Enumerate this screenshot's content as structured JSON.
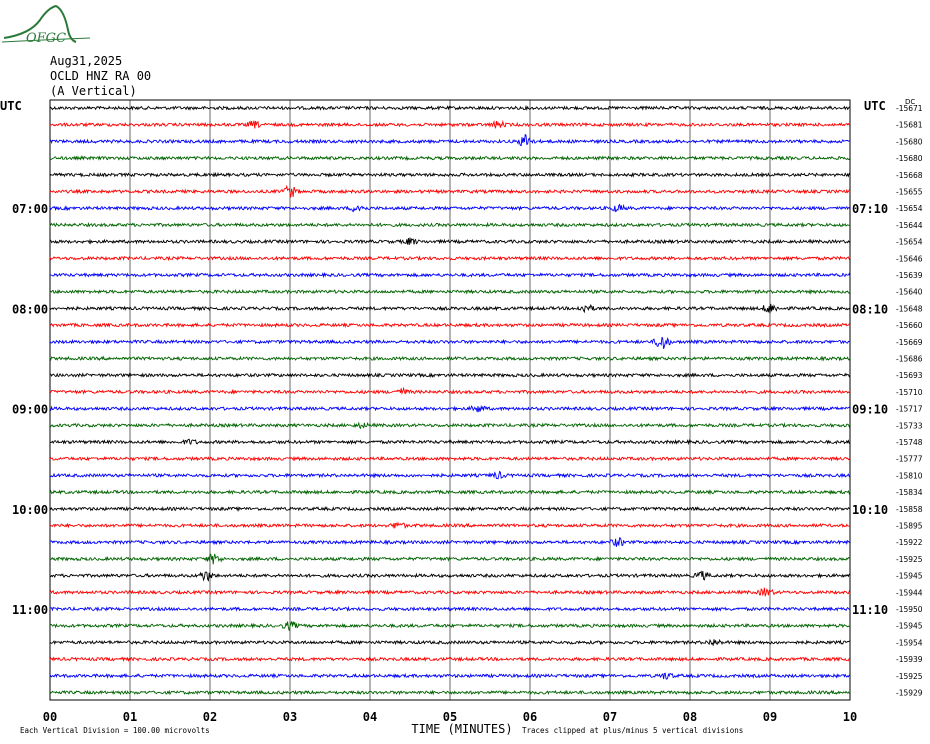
{
  "logo": {
    "text": "OFGC",
    "color": "#2a7a3a"
  },
  "header": {
    "date": "Aug31,2025",
    "station": "OCLD HNZ RA 00",
    "component": "(A Vertical)"
  },
  "axis": {
    "left_utc_label": "UTC",
    "right_utc_label": "UTC",
    "right_top_label": "DC",
    "xlabel": "TIME (MINUTES)",
    "footer_left": "Each Vertical Division =  100.00 microvolts",
    "footer_right": "Traces clipped at plus/minus 5 vertical divisions"
  },
  "colors": {
    "trace_cycle": [
      "#000000",
      "#ff0000",
      "#0000ff",
      "#006400"
    ],
    "grid": "#000000"
  },
  "chart_data": {
    "type": "line",
    "title": "",
    "xlabel": "TIME (MINUTES)",
    "ylabel": "",
    "xlim": [
      0,
      10
    ],
    "x_ticks": [
      "00",
      "01",
      "02",
      "03",
      "04",
      "05",
      "06",
      "07",
      "08",
      "09",
      "10"
    ],
    "left_time_labels": [
      {
        "trace": 6,
        "label": "07:00"
      },
      {
        "trace": 12,
        "label": "08:00"
      },
      {
        "trace": 18,
        "label": "09:00"
      },
      {
        "trace": 24,
        "label": "10:00"
      },
      {
        "trace": 30,
        "label": "11:00"
      }
    ],
    "right_time_labels": [
      {
        "trace": 6,
        "label": "07:10"
      },
      {
        "trace": 12,
        "label": "08:10"
      },
      {
        "trace": 18,
        "label": "09:10"
      },
      {
        "trace": 24,
        "label": "10:10"
      },
      {
        "trace": 30,
        "label": "11:10"
      }
    ],
    "dc_offsets": [
      "-15671",
      "-15681",
      "-15680",
      "-15680",
      "-15668",
      "-15655",
      "-15654",
      "-15644",
      "-15654",
      "-15646",
      "-15639",
      "-15640",
      "-15648",
      "-15660",
      "-15669",
      "-15686",
      "-15693",
      "-15710",
      "-15717",
      "-15733",
      "-15748",
      "-15777",
      "-15810",
      "-15834",
      "-15858",
      "-15895",
      "-15922",
      "-15925",
      "-15945",
      "-15944",
      "-15950",
      "-15945",
      "-15954",
      "-15939",
      "-15925",
      "-15929"
    ],
    "trace_count": 36,
    "events": [
      {
        "trace": 1,
        "minute": 2.55,
        "amp": 3
      },
      {
        "trace": 1,
        "minute": 5.6,
        "amp": 3
      },
      {
        "trace": 2,
        "minute": 5.95,
        "amp": 7
      },
      {
        "trace": 5,
        "minute": 3.0,
        "amp": 6
      },
      {
        "trace": 6,
        "minute": 3.85,
        "amp": 4
      },
      {
        "trace": 6,
        "minute": 7.1,
        "amp": 3
      },
      {
        "trace": 8,
        "minute": 4.5,
        "amp": 3
      },
      {
        "trace": 12,
        "minute": 6.7,
        "amp": 4
      },
      {
        "trace": 12,
        "minute": 9.0,
        "amp": 5
      },
      {
        "trace": 14,
        "minute": 7.65,
        "amp": 8
      },
      {
        "trace": 17,
        "minute": 4.4,
        "amp": 3
      },
      {
        "trace": 18,
        "minute": 5.35,
        "amp": 3
      },
      {
        "trace": 19,
        "minute": 3.9,
        "amp": 2
      },
      {
        "trace": 20,
        "minute": 1.75,
        "amp": 2
      },
      {
        "trace": 22,
        "minute": 5.6,
        "amp": 3
      },
      {
        "trace": 25,
        "minute": 4.35,
        "amp": 3
      },
      {
        "trace": 26,
        "minute": 7.1,
        "amp": 4
      },
      {
        "trace": 27,
        "minute": 2.05,
        "amp": 5
      },
      {
        "trace": 28,
        "minute": 1.95,
        "amp": 5
      },
      {
        "trace": 28,
        "minute": 8.15,
        "amp": 4
      },
      {
        "trace": 29,
        "minute": 8.95,
        "amp": 4
      },
      {
        "trace": 31,
        "minute": 3.0,
        "amp": 4
      },
      {
        "trace": 32,
        "minute": 8.3,
        "amp": 3
      },
      {
        "trace": 34,
        "minute": 7.7,
        "amp": 3
      }
    ]
  }
}
